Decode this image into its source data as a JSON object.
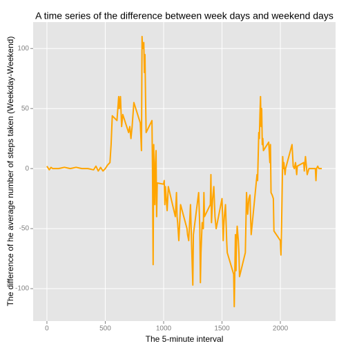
{
  "chart_data": {
    "type": "line",
    "title": "A time series of the difference between week days and weekend days",
    "xlabel": "The 5-minute interval",
    "ylabel": "The difference of he average number of steps taken (Weekday-Weekend)",
    "xlim": [
      -118,
      2473
    ],
    "ylim": [
      -127,
      122
    ],
    "xticks": [
      0,
      500,
      1000,
      1500,
      2000
    ],
    "yticks": [
      -100,
      -50,
      0,
      50,
      100
    ],
    "grid": true,
    "series": [
      {
        "name": "difference",
        "color": "#ffa500",
        "x": [
          0,
          20,
          35,
          50,
          100,
          150,
          200,
          250,
          300,
          350,
          400,
          420,
          440,
          460,
          480,
          500,
          520,
          540,
          550,
          560,
          600,
          615,
          620,
          630,
          640,
          650,
          700,
          710,
          720,
          730,
          745,
          800,
          810,
          815,
          820,
          830,
          835,
          840,
          845,
          850,
          900,
          905,
          910,
          915,
          920,
          925,
          930,
          935,
          940,
          945,
          1000,
          1005,
          1010,
          1015,
          1030,
          1040,
          1100,
          1110,
          1115,
          1120,
          1130,
          1145,
          1200,
          1205,
          1215,
          1230,
          1240,
          1250,
          1255,
          1300,
          1310,
          1315,
          1320,
          1330,
          1340,
          1345,
          1350,
          1400,
          1405,
          1410,
          1420,
          1430,
          1440,
          1450,
          1500,
          1505,
          1510,
          1515,
          1520,
          1530,
          1540,
          1545,
          1600,
          1605,
          1610,
          1615,
          1620,
          1625,
          1630,
          1640,
          1645,
          1650,
          1700,
          1710,
          1720,
          1730,
          1740,
          1745,
          1750,
          1800,
          1805,
          1815,
          1820,
          1825,
          1830,
          1835,
          1840,
          1845,
          1850,
          1855,
          1900,
          1910,
          1915,
          1920,
          1930,
          1940,
          1945,
          2000,
          2005,
          2010,
          2015,
          2020,
          2025,
          2030,
          2040,
          2045,
          2100,
          2110,
          2120,
          2130,
          2140,
          2145,
          2200,
          2205,
          2215,
          2230,
          2245,
          2300,
          2305,
          2310,
          2320,
          2330,
          2355
        ],
        "values": [
          2,
          -1,
          1,
          0,
          0,
          1,
          0,
          1,
          0,
          0,
          -1,
          2,
          -2,
          1,
          -2,
          0,
          3,
          5,
          20,
          44,
          40,
          60,
          50,
          60,
          35,
          45,
          30,
          35,
          25,
          35,
          55,
          38,
          15,
          110,
          100,
          105,
          80,
          95,
          60,
          30,
          40,
          -5,
          -80,
          20,
          -10,
          -30,
          5,
          15,
          -40,
          -12,
          -13,
          -10,
          -30,
          -15,
          -35,
          -15,
          -40,
          -20,
          -40,
          -45,
          -60,
          -30,
          -50,
          -55,
          -60,
          -30,
          -65,
          -97,
          -55,
          -20,
          -50,
          -95,
          -70,
          -45,
          -50,
          -20,
          -40,
          -30,
          -5,
          -45,
          -25,
          -15,
          -40,
          -50,
          -25,
          -40,
          -60,
          -48,
          -40,
          -30,
          -60,
          -70,
          -88,
          -115,
          -85,
          -55,
          -85,
          -60,
          -48,
          -60,
          -70,
          -90,
          -70,
          -20,
          -38,
          -25,
          -22,
          -40,
          -55,
          -5,
          -10,
          30,
          25,
          45,
          60,
          35,
          50,
          20,
          25,
          15,
          22,
          5,
          20,
          -20,
          -22,
          -25,
          -52,
          -60,
          -72,
          -50,
          -20,
          10,
          0,
          5,
          -5,
          0,
          20,
          2,
          0,
          5,
          -5,
          2,
          5,
          -2,
          10,
          -5,
          0,
          0,
          -10,
          0,
          2,
          0,
          0
        ]
      }
    ]
  }
}
